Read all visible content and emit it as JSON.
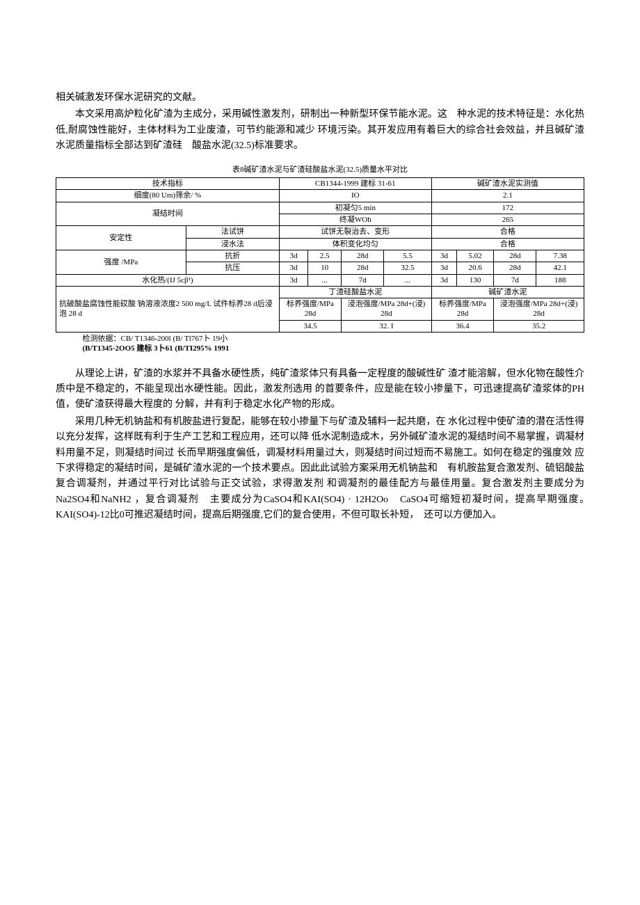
{
  "paragraphs": {
    "p1a": "相关碱激发环保水泥研究的文献。",
    "p1b": "本文采用高炉粒化矿渣为主成分，采用碱性激发剂，研制出一种新型环保节能水泥。这　种水泥的技术特征是：水化热低,耐腐蚀性能好，主体材料为工业废渣，可节约能源和减少 环境污染。其开发应用有着巨大的综合社会效益，并且碱矿渣水泥质量指标全部达到矿渣硅　酸盐水泥(32.5)标准要求。",
    "p2a": "从理论上讲，矿渣的水浆并不具备水硬性质，纯矿渣浆体只有具备一定程度的酸碱性矿 渣才能溶解，但水化物在酸性介质中是不稳定的，不能呈现出水硬性能。因此，激发剂选用 的首要条件，应是能在较小掺量下，可迅速提高矿渣浆体的PH值，使矿渣获得最大程度的 分解，并有利于稳定水化产物的形成。",
    "p2b": "采用几种无机钠盐和有机胺盐进行复配，能够在较小掺量下与矿渣及辅料一起共磨，在 水化过程中使矿渣的潜在活性得以充分发挥，这样既有利于生产工艺和工程应用，还可以降 低水泥制造成木，另外碱矿渣水泥的凝结时间不易掌握，调凝材料用量不足，则凝结时间过 长而早期强度偏低，调凝材料用量过大，则凝结时间过短而不易施工。如何在稳定的强度效 应下求得稳定的凝结时间，是碱矿渣水泥的一个技术要点。因此此试验方案采用无机钠盐和　有机胺盐复合激发剂、硫铝酸盐复合调凝剂，并通过平行对比试验与正交试验，求得激发剂 和调凝剂的最佳配方与最佳用量。复合激发剂主要成分为Na2SO4和NaNH2 ，复合调凝剂　主要成分为CaSO4和KAI(SO4)  · 12H2Oo　CaSO4可缩短初凝时间，提高早期强度。　KAI(SO4)-12比0可推迟凝结时间，提高后期强度,它们的复合使用，不但可取长补短，　还可以方便加入。"
  },
  "table": {
    "title": "表8碱矿渣水泥与矿渣硅酸盐水泥(32.5)质量水平对比",
    "headers": {
      "tech_indicator": "技术指标",
      "cb_standard": "CB1344-1999 建标  31-61",
      "alkali_measured": "碱矿渣水泥实测值"
    },
    "rows": {
      "fineness": {
        "label": "细度(80 Um)筛余/  %",
        "std": "IO",
        "meas": "2.1"
      },
      "setting_time": {
        "label": "凝结时间",
        "initial": "初凝匀5 min",
        "final": "终凝WOh",
        "meas_initial": "172",
        "meas_final": "265"
      },
      "stability": {
        "label": "安定性",
        "method1": "法试饼",
        "method2": "浸水法",
        "std1": "试饼无裂治去、变形",
        "std2": "体积变化均匀",
        "meas1": "合格",
        "meas2": "合格"
      },
      "strength": {
        "label": "强度 /MPa",
        "bend": "抗折",
        "comp": "抗压",
        "bend_std": [
          "3d",
          "2.5",
          "28d",
          "5.5"
        ],
        "bend_meas": [
          "3d",
          "5.02",
          "28d",
          "7.38"
        ],
        "comp_std": [
          "3d",
          "10",
          "28d",
          "32.5"
        ],
        "comp_meas": [
          "3d",
          "20.6",
          "28d",
          "42.1"
        ]
      },
      "hydration": {
        "label": "水化热/(IJ 5cβ¹)",
        "std": [
          "3d",
          "...",
          "7d",
          "..."
        ],
        "meas": [
          "3d",
          "130",
          "7d",
          "188"
        ]
      },
      "corrosion": {
        "label": "抗破酸盐腐蚀性能砹酸  钠溶液浓度2 500 mg/L 试件标养28 d后浸泡  28 d",
        "sub_header1": "丁渣硅酸盐水泥",
        "sub_header2": "碱矿渣水泥",
        "col1": "标养强度/MPa 28d",
        "col2": "浸泡强度/MPa 28d+(浸) 28d",
        "col3": "标养强度/MPa 28d",
        "col4": "浸泡强度/MPa 28d+(浸) 28d",
        "vals": [
          "34.5",
          "32. I",
          "36.4",
          "35.2"
        ]
      }
    },
    "footnote": "检测依据：CB/ T1346-200l (B/ Tl767卜 19小",
    "footnote2": "(B/T1345·2OO5 建标  3卜61 (B/TI295% 1991"
  }
}
